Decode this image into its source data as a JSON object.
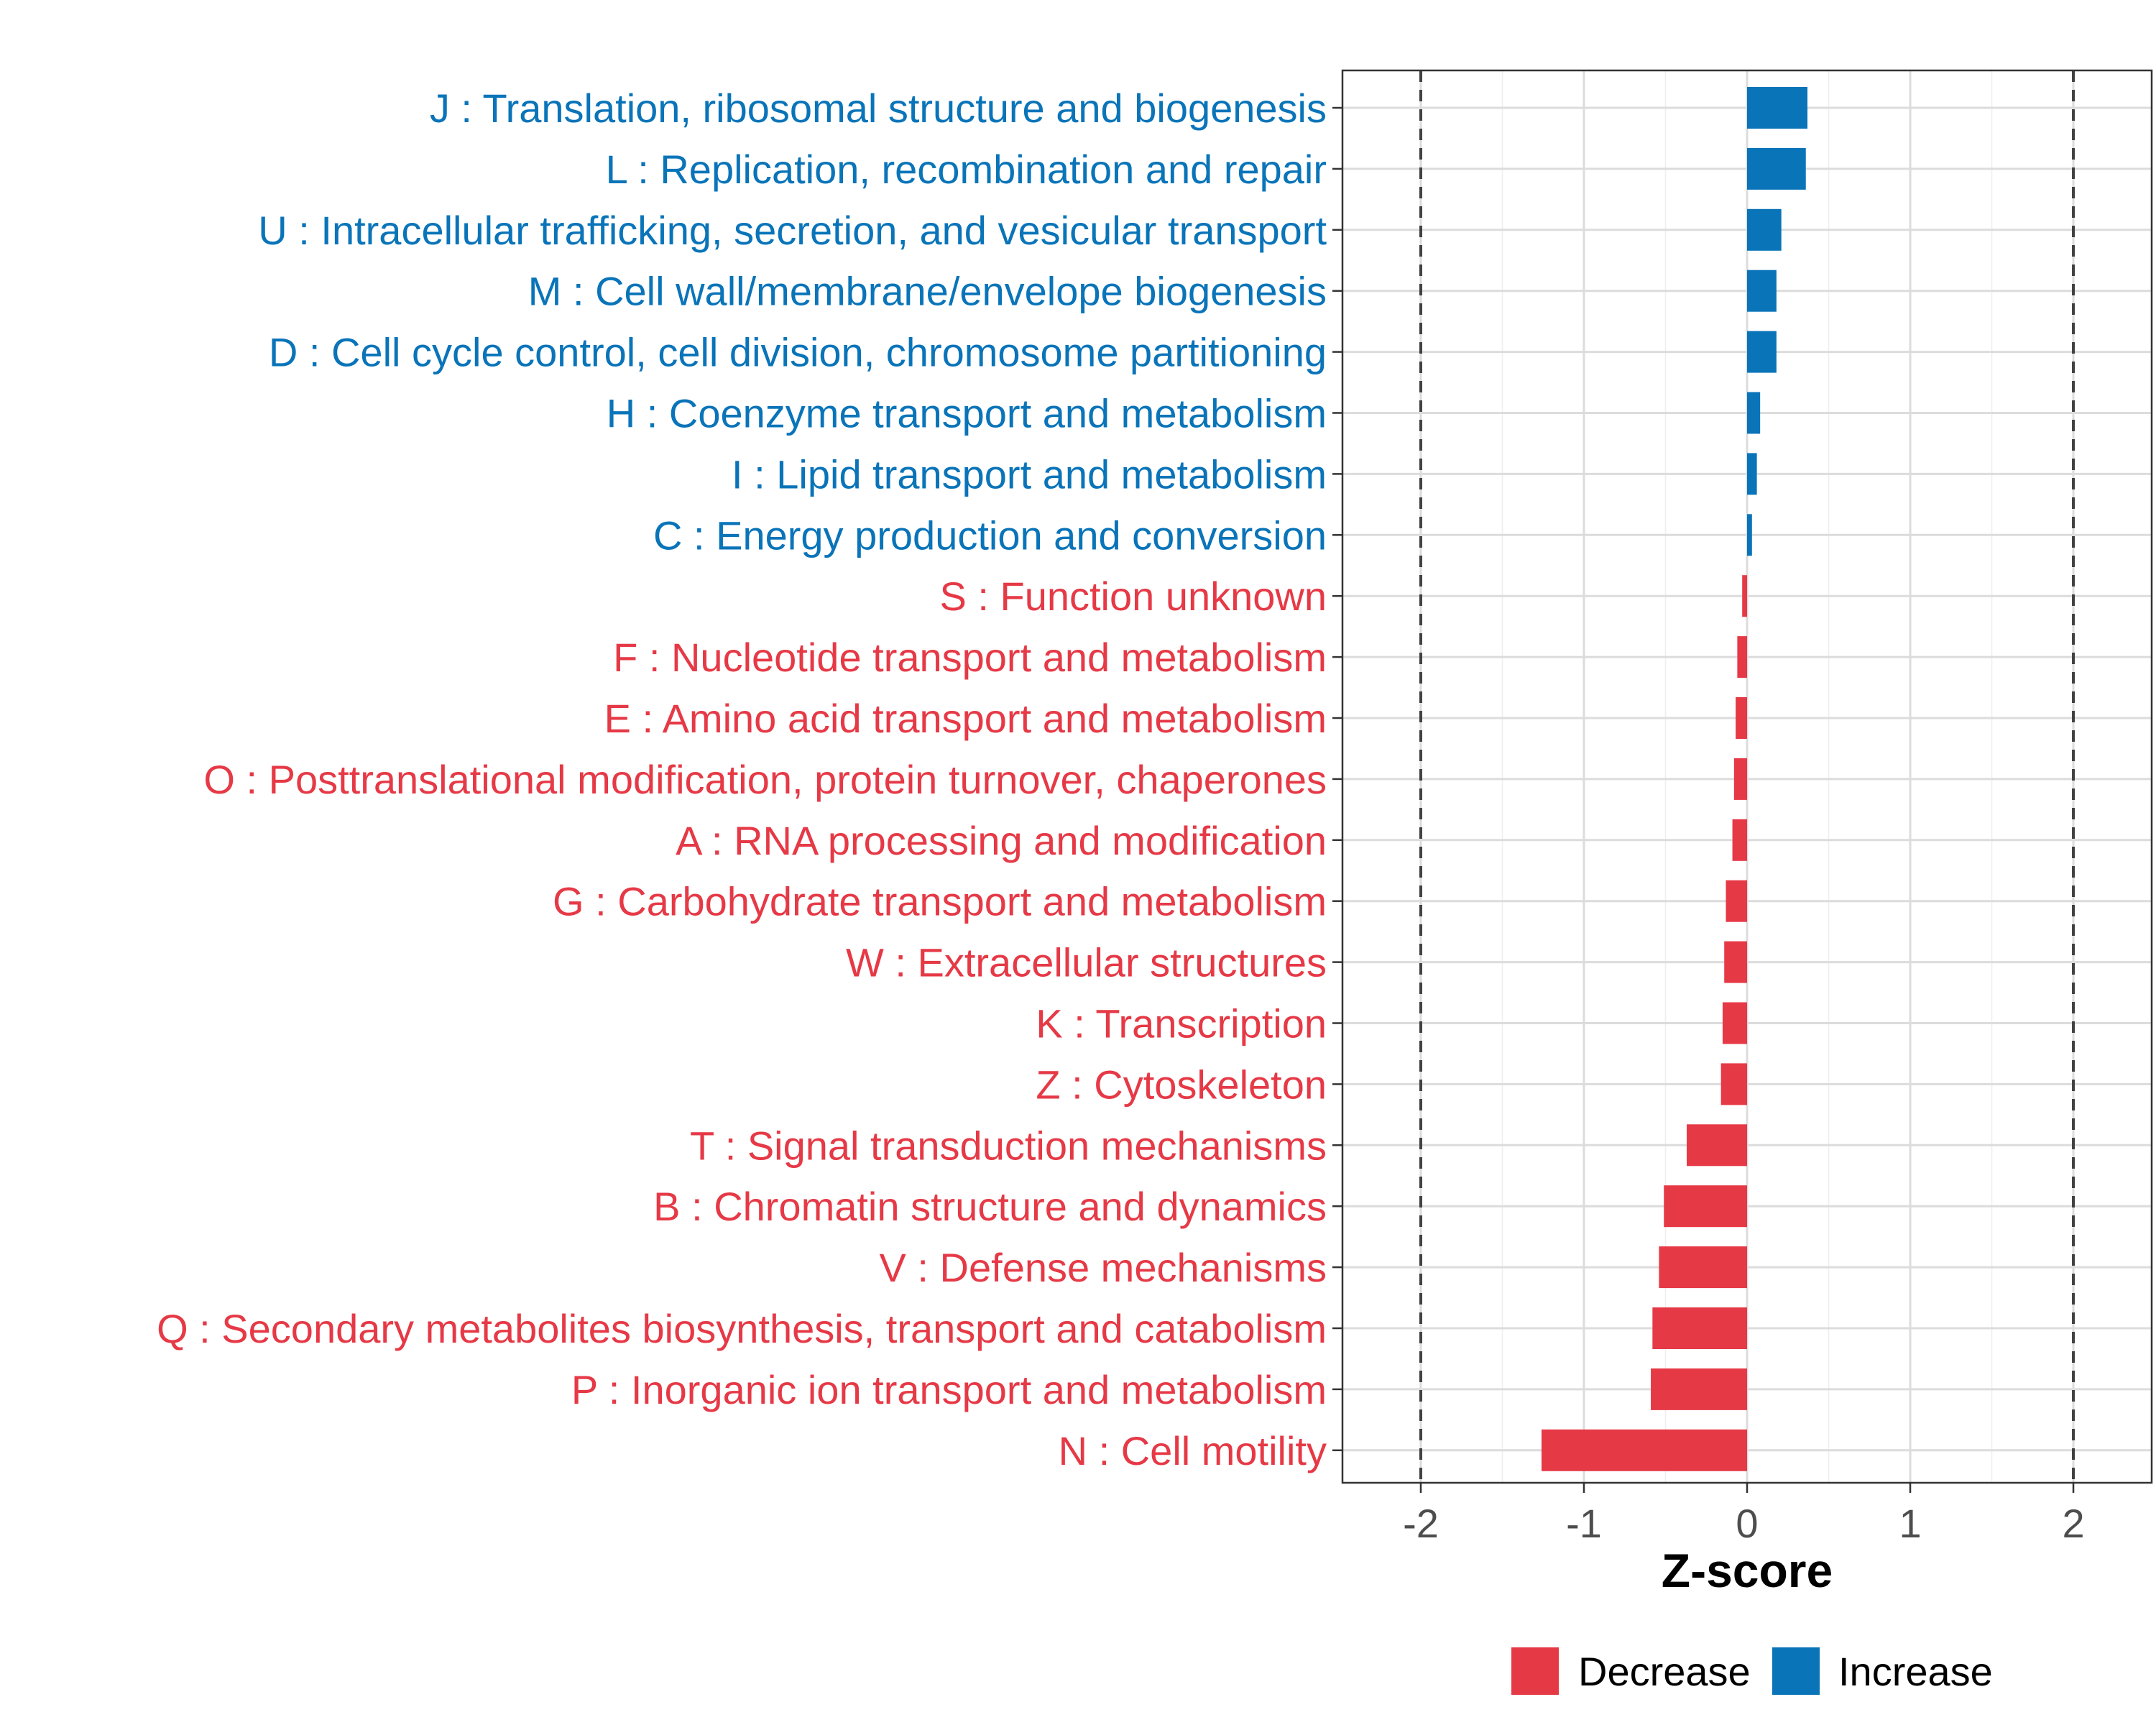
{
  "chart_data": {
    "type": "bar",
    "orientation": "horizontal",
    "xlabel": "Z-score",
    "xlim": [
      -2.48,
      2.48
    ],
    "xticks": [
      -2,
      -1,
      0,
      1,
      2
    ],
    "xtick_labels": [
      "-2",
      "-1",
      "0",
      "1",
      "2"
    ],
    "reference_lines": [
      -2,
      2
    ],
    "grid": true,
    "legend_position": "bottom",
    "colors": {
      "Decrease": "#E63946",
      "Increase": "#0A74B9"
    },
    "legend": [
      {
        "name": "Decrease",
        "color": "#E63946"
      },
      {
        "name": "Increase",
        "color": "#0A74B9"
      }
    ],
    "categories": [
      "J : Translation, ribosomal structure and biogenesis",
      "L : Replication, recombination and repair",
      "U : Intracellular trafficking, secretion, and vesicular transport",
      "M : Cell wall/membrane/envelope biogenesis",
      "D : Cell cycle control, cell division, chromosome partitioning",
      "H : Coenzyme transport and metabolism",
      "I : Lipid transport and metabolism",
      "C : Energy production and conversion",
      "S : Function unknown",
      "F : Nucleotide transport and metabolism",
      "E : Amino acid transport and metabolism",
      "O : Posttranslational modification, protein turnover, chaperones",
      "A : RNA processing and modification",
      "G : Carbohydrate transport and metabolism",
      "W : Extracellular structures",
      "K : Transcription",
      "Z : Cytoskeleton",
      "T : Signal transduction mechanisms",
      "B : Chromatin structure and dynamics",
      "V : Defense mechanisms",
      "Q : Secondary metabolites biosynthesis, transport and catabolism",
      "P : Inorganic ion transport and metabolism",
      "N : Cell motility"
    ],
    "values": [
      0.37,
      0.36,
      0.21,
      0.18,
      0.18,
      0.08,
      0.06,
      0.03,
      -0.03,
      -0.06,
      -0.07,
      -0.08,
      -0.09,
      -0.13,
      -0.14,
      -0.15,
      -0.16,
      -0.37,
      -0.51,
      -0.54,
      -0.58,
      -0.59,
      -1.26
    ],
    "groups": [
      "Increase",
      "Increase",
      "Increase",
      "Increase",
      "Increase",
      "Increase",
      "Increase",
      "Increase",
      "Decrease",
      "Decrease",
      "Decrease",
      "Decrease",
      "Decrease",
      "Decrease",
      "Decrease",
      "Decrease",
      "Decrease",
      "Decrease",
      "Decrease",
      "Decrease",
      "Decrease",
      "Decrease",
      "Decrease"
    ]
  }
}
